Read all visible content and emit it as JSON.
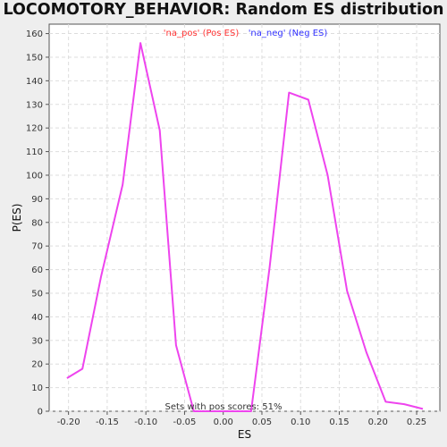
{
  "chart_data": {
    "type": "line",
    "title": "LOCOMOTORY_BEHAVIOR: Random ES distribution",
    "xlabel": "ES",
    "ylabel": "P(ES)",
    "xlim": [
      -0.225,
      0.28
    ],
    "ylim": [
      0,
      164
    ],
    "x_ticks": [
      -0.2,
      -0.15,
      -0.1,
      -0.05,
      0.0,
      0.05,
      0.1,
      0.15,
      0.2,
      0.25
    ],
    "x_tick_labels": [
      "-0.20",
      "-0.15",
      "-0.10",
      "-0.05",
      "0.00",
      "0.05",
      "0.10",
      "0.15",
      "0.20",
      "0.25"
    ],
    "y_ticks": [
      0,
      10,
      20,
      30,
      40,
      50,
      60,
      70,
      80,
      90,
      100,
      110,
      120,
      130,
      140,
      150,
      160
    ],
    "y_tick_labels": [
      "0",
      "10",
      "20",
      "30",
      "40",
      "50",
      "60",
      "70",
      "80",
      "90",
      "100",
      "110",
      "120",
      "130",
      "140",
      "150",
      "160"
    ],
    "grid": true,
    "legend": [
      {
        "label": "'na_pos' (Pos ES)",
        "color": "#ff3333"
      },
      {
        "label": "'na_neg' (Neg ES)",
        "color": "#3333ff"
      }
    ],
    "legend_position": "top-center",
    "annotation": "Sets with pos scores: 51%",
    "series": [
      {
        "color": "#ee44ee",
        "x": [
          -0.202,
          -0.182,
          -0.158,
          -0.13,
          -0.107,
          -0.082,
          -0.061,
          -0.038,
          -0.013,
          0.012,
          0.036,
          0.06,
          0.085,
          0.11,
          0.135,
          0.16,
          0.185,
          0.21,
          0.234,
          0.258
        ],
        "y": [
          14,
          18,
          57,
          96,
          156,
          119,
          28,
          0,
          0,
          0,
          0,
          61,
          135,
          132,
          100,
          51,
          25,
          4,
          3,
          1
        ]
      }
    ]
  }
}
